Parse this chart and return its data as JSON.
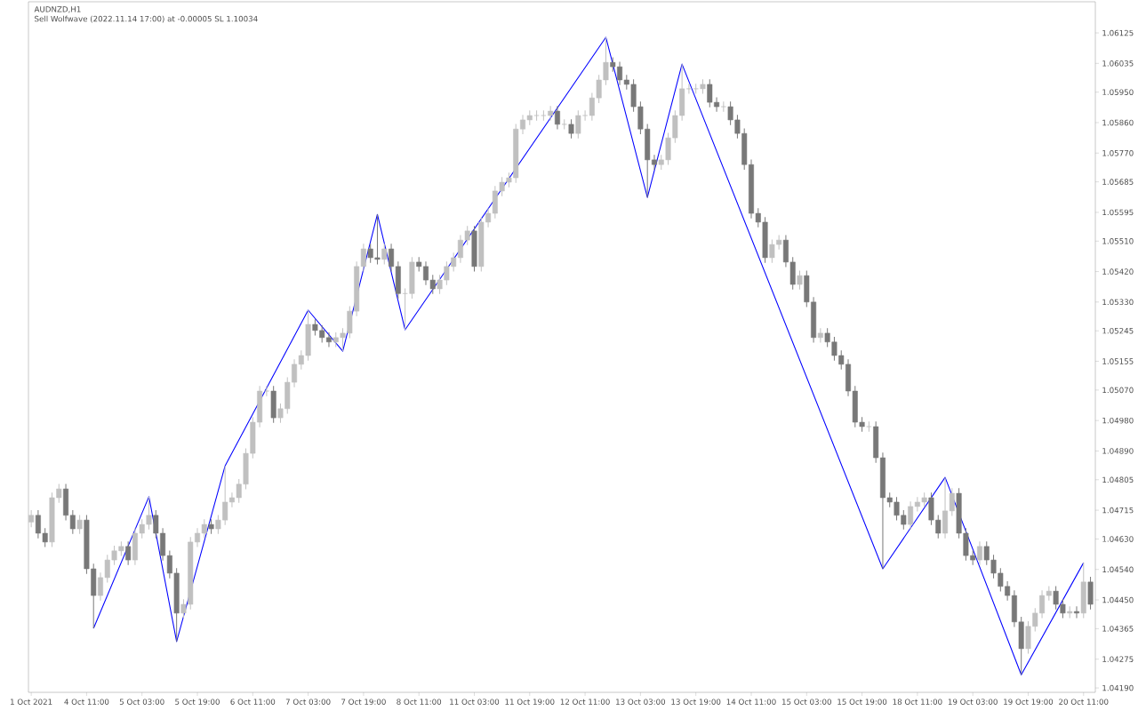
{
  "chart_data": {
    "type": "candlestick",
    "title": "AUDNZD,H1",
    "subtitle": "Sell Wolfwave (2022.11.14 17:00) at -0.00005 SL 1.10034",
    "ylim": [
      1.04177,
      1.06217
    ],
    "categories": [
      "1 Oct 2021",
      null,
      null,
      null,
      null,
      null,
      null,
      null,
      "4 Oct 11:00",
      null,
      null,
      null,
      null,
      null,
      null,
      null,
      "5 Oct 03:00",
      null,
      null,
      null,
      null,
      null,
      null,
      null,
      "5 Oct 19:00",
      null,
      null,
      null,
      null,
      null,
      null,
      null,
      "6 Oct 11:00",
      null,
      null,
      null,
      null,
      null,
      null,
      null,
      "7 Oct 03:00",
      null,
      null,
      null,
      null,
      null,
      null,
      null,
      "7 Oct 19:00",
      null,
      null,
      null,
      null,
      null,
      null,
      null,
      "8 Oct 11:00",
      null,
      null,
      null,
      null,
      null,
      null,
      null,
      "11 Oct 03:00",
      null,
      null,
      null,
      null,
      null,
      null,
      null,
      "11 Oct 19:00",
      null,
      null,
      null,
      null,
      null,
      null,
      null,
      "12 Oct 11:00",
      null,
      null,
      null,
      null,
      null,
      null,
      null,
      "13 Oct 03:00",
      null,
      null,
      null,
      null,
      null,
      null,
      null,
      "13 Oct 19:00",
      null,
      null,
      null,
      null,
      null,
      null,
      null,
      "14 Oct 11:00",
      null,
      null,
      null,
      null,
      null,
      null,
      null,
      "15 Oct 03:00",
      null,
      null,
      null,
      null,
      null,
      null,
      null,
      "15 Oct 19:00",
      null,
      null,
      null,
      null,
      null,
      null,
      null,
      "18 Oct 11:00",
      null,
      null,
      null,
      null,
      null,
      null,
      null,
      "19 Oct 03:00",
      null,
      null,
      null,
      null,
      null,
      null,
      null,
      "19 Oct 19:00",
      null,
      null,
      null,
      null,
      null,
      null,
      null,
      "20 Oct 11:00",
      null
    ],
    "yticks": [
      {
        "value": 1.0419,
        "label": "1.04190"
      },
      {
        "value": 1.04275,
        "label": "1.04275"
      },
      {
        "value": 1.04365,
        "label": "1.04365"
      },
      {
        "value": 1.0445,
        "label": "1.04450"
      },
      {
        "value": 1.0454,
        "label": "1.04540"
      },
      {
        "value": 1.0463,
        "label": "1.04630"
      },
      {
        "value": 1.04715,
        "label": "1.04715"
      },
      {
        "value": 1.04805,
        "label": "1.04805"
      },
      {
        "value": 1.0489,
        "label": "1.04890"
      },
      {
        "value": 1.0498,
        "label": "1.04980"
      },
      {
        "value": 1.0507,
        "label": "1.05070"
      },
      {
        "value": 1.05155,
        "label": "1.05155"
      },
      {
        "value": 1.05245,
        "label": "1.05245"
      },
      {
        "value": 1.0533,
        "label": "1.05330"
      },
      {
        "value": 1.0542,
        "label": "1.05420"
      },
      {
        "value": 1.0551,
        "label": "1.05510"
      },
      {
        "value": 1.05595,
        "label": "1.05595"
      },
      {
        "value": 1.05685,
        "label": "1.05685"
      },
      {
        "value": 1.0577,
        "label": "1.05770"
      },
      {
        "value": 1.0586,
        "label": "1.05860"
      },
      {
        "value": 1.0595,
        "label": "1.05950"
      },
      {
        "value": 1.06035,
        "label": "1.06035"
      },
      {
        "value": 1.06125,
        "label": "1.06125"
      }
    ],
    "ohlc": [
      [
        1.0468,
        1.04715,
        1.04665,
        1.047
      ],
      [
        1.047,
        1.04715,
        1.04632,
        1.04647
      ],
      [
        1.04647,
        1.04662,
        1.04606,
        1.04621
      ],
      [
        1.04621,
        1.04767,
        1.04606,
        1.04752
      ],
      [
        1.04752,
        1.04793,
        1.04737,
        1.04778
      ],
      [
        1.04778,
        1.04793,
        1.04685,
        1.047
      ],
      [
        1.047,
        1.04715,
        1.04645,
        1.0466
      ],
      [
        1.0466,
        1.04701,
        1.04645,
        1.04686
      ],
      [
        1.04686,
        1.04701,
        1.04527,
        1.04542
      ],
      [
        1.04542,
        1.04557,
        1.04366,
        1.04463
      ],
      [
        1.04463,
        1.04531,
        1.04448,
        1.04516
      ],
      [
        1.04516,
        1.04583,
        1.04501,
        1.04568
      ],
      [
        1.04568,
        1.0461,
        1.04553,
        1.04595
      ],
      [
        1.04595,
        1.04623,
        1.0458,
        1.04608
      ],
      [
        1.04608,
        1.04623,
        1.04553,
        1.04568
      ],
      [
        1.04568,
        1.04662,
        1.04553,
        1.04647
      ],
      [
        1.04647,
        1.04688,
        1.04632,
        1.04673
      ],
      [
        1.04673,
        1.04755,
        1.04658,
        1.047
      ],
      [
        1.047,
        1.04715,
        1.04632,
        1.04647
      ],
      [
        1.04647,
        1.04662,
        1.04566,
        1.04581
      ],
      [
        1.04581,
        1.04596,
        1.04514,
        1.04529
      ],
      [
        1.04529,
        1.04544,
        1.04327,
        1.04411
      ],
      [
        1.04411,
        1.04452,
        1.04396,
        1.04437
      ],
      [
        1.04437,
        1.04636,
        1.04422,
        1.04621
      ],
      [
        1.04621,
        1.04662,
        1.04606,
        1.04647
      ],
      [
        1.04647,
        1.04688,
        1.04632,
        1.04673
      ],
      [
        1.04673,
        1.04688,
        1.04645,
        1.0466
      ],
      [
        1.0466,
        1.04701,
        1.04645,
        1.04686
      ],
      [
        1.04686,
        1.04846,
        1.04671,
        1.04739
      ],
      [
        1.04739,
        1.04767,
        1.04724,
        1.04752
      ],
      [
        1.04752,
        1.04807,
        1.04737,
        1.04792
      ],
      [
        1.04792,
        1.04898,
        1.04777,
        1.04883
      ],
      [
        1.04883,
        1.0499,
        1.04868,
        1.04975
      ],
      [
        1.04975,
        1.05082,
        1.0496,
        1.05067
      ],
      [
        1.05067,
        1.05082,
        1.05052,
        1.05067
      ],
      [
        1.05067,
        1.05082,
        1.04973,
        1.04988
      ],
      [
        1.04988,
        1.0503,
        1.04973,
        1.05015
      ],
      [
        1.05015,
        1.05108,
        1.05,
        1.05093
      ],
      [
        1.05093,
        1.05161,
        1.05078,
        1.05146
      ],
      [
        1.05146,
        1.05187,
        1.05131,
        1.05172
      ],
      [
        1.05172,
        1.05306,
        1.05157,
        1.05264
      ],
      [
        1.05264,
        1.05279,
        1.05231,
        1.05246
      ],
      [
        1.05246,
        1.05261,
        1.0521,
        1.05225
      ],
      [
        1.05225,
        1.0524,
        1.05197,
        1.05212
      ],
      [
        1.05212,
        1.0524,
        1.05197,
        1.05225
      ],
      [
        1.05225,
        1.05253,
        1.05185,
        1.05238
      ],
      [
        1.05238,
        1.05318,
        1.05223,
        1.05303
      ],
      [
        1.05303,
        1.0545,
        1.05288,
        1.05435
      ],
      [
        1.05435,
        1.05502,
        1.0542,
        1.05487
      ],
      [
        1.05487,
        1.05502,
        1.05446,
        1.05461
      ],
      [
        1.05461,
        1.05589,
        1.05441,
        1.05456
      ],
      [
        1.05456,
        1.05502,
        1.05441,
        1.05487
      ],
      [
        1.05487,
        1.05502,
        1.0542,
        1.05435
      ],
      [
        1.05435,
        1.0545,
        1.0534,
        1.05355
      ],
      [
        1.05355,
        1.0537,
        1.05248,
        1.05355
      ],
      [
        1.05355,
        1.05463,
        1.0534,
        1.05448
      ],
      [
        1.05448,
        1.05463,
        1.0542,
        1.05435
      ],
      [
        1.05435,
        1.0545,
        1.0538,
        1.05395
      ],
      [
        1.05395,
        1.0541,
        1.05354,
        1.05369
      ],
      [
        1.05369,
        1.0541,
        1.05354,
        1.05395
      ],
      [
        1.05395,
        1.0545,
        1.0538,
        1.05435
      ],
      [
        1.05435,
        1.05476,
        1.0542,
        1.05461
      ],
      [
        1.05461,
        1.05528,
        1.05446,
        1.05513
      ],
      [
        1.05513,
        1.05555,
        1.05498,
        1.0554
      ],
      [
        1.0554,
        1.05555,
        1.0542,
        1.05435
      ],
      [
        1.05435,
        1.05581,
        1.0542,
        1.05566
      ],
      [
        1.05566,
        1.05607,
        1.05551,
        1.05592
      ],
      [
        1.05592,
        1.05673,
        1.05577,
        1.05658
      ],
      [
        1.05658,
        1.05699,
        1.05643,
        1.05684
      ],
      [
        1.05684,
        1.05712,
        1.05669,
        1.05697
      ],
      [
        1.05697,
        1.05856,
        1.05682,
        1.05841
      ],
      [
        1.05841,
        1.05883,
        1.05826,
        1.05868
      ],
      [
        1.05868,
        1.05896,
        1.05853,
        1.05881
      ],
      [
        1.05881,
        1.05896,
        1.05866,
        1.05881
      ],
      [
        1.05881,
        1.05896,
        1.05866,
        1.05881
      ],
      [
        1.05881,
        1.05909,
        1.05866,
        1.05894
      ],
      [
        1.05894,
        1.05909,
        1.0584,
        1.05855
      ],
      [
        1.05855,
        1.0587,
        1.0584,
        1.05855
      ],
      [
        1.05855,
        1.0587,
        1.05813,
        1.05828
      ],
      [
        1.05828,
        1.05896,
        1.05813,
        1.05881
      ],
      [
        1.05881,
        1.05896,
        1.05866,
        1.05881
      ],
      [
        1.05881,
        1.05948,
        1.05866,
        1.05933
      ],
      [
        1.05933,
        1.06001,
        1.05918,
        1.05986
      ],
      [
        1.05986,
        1.06112,
        1.05971,
        1.06038
      ],
      [
        1.06038,
        1.06053,
        1.0601,
        1.06025
      ],
      [
        1.06025,
        1.0604,
        1.05971,
        1.05986
      ],
      [
        1.05986,
        1.06001,
        1.05958,
        1.05973
      ],
      [
        1.05973,
        1.05988,
        1.05892,
        1.05907
      ],
      [
        1.05907,
        1.05922,
        1.05826,
        1.05841
      ],
      [
        1.05841,
        1.05856,
        1.05639,
        1.0575
      ],
      [
        1.0575,
        1.05765,
        1.05721,
        1.05736
      ],
      [
        1.05736,
        1.05765,
        1.05721,
        1.0575
      ],
      [
        1.0575,
        1.0583,
        1.05735,
        1.05815
      ],
      [
        1.05815,
        1.05896,
        1.058,
        1.05881
      ],
      [
        1.05881,
        1.06033,
        1.05866,
        1.0596
      ],
      [
        1.0596,
        1.05975,
        1.05945,
        1.0596
      ],
      [
        1.0596,
        1.05975,
        1.05945,
        1.0596
      ],
      [
        1.0596,
        1.05988,
        1.05945,
        1.05973
      ],
      [
        1.05973,
        1.05988,
        1.05905,
        1.0592
      ],
      [
        1.0592,
        1.05935,
        1.05892,
        1.05907
      ],
      [
        1.05907,
        1.05922,
        1.05892,
        1.05907
      ],
      [
        1.05907,
        1.05922,
        1.05853,
        1.05868
      ],
      [
        1.05868,
        1.05883,
        1.05813,
        1.05828
      ],
      [
        1.05828,
        1.05843,
        1.05721,
        1.05736
      ],
      [
        1.05736,
        1.05751,
        1.05577,
        1.05592
      ],
      [
        1.05592,
        1.05607,
        1.05551,
        1.05566
      ],
      [
        1.05566,
        1.05581,
        1.05446,
        1.05461
      ],
      [
        1.05461,
        1.05515,
        1.05446,
        1.055
      ],
      [
        1.055,
        1.05528,
        1.05485,
        1.05513
      ],
      [
        1.05513,
        1.05528,
        1.05433,
        1.05448
      ],
      [
        1.05448,
        1.05463,
        1.05367,
        1.05382
      ],
      [
        1.05382,
        1.05423,
        1.05367,
        1.05408
      ],
      [
        1.05408,
        1.05423,
        1.05315,
        1.0533
      ],
      [
        1.0533,
        1.05345,
        1.0521,
        1.05225
      ],
      [
        1.05225,
        1.05253,
        1.0521,
        1.05238
      ],
      [
        1.05238,
        1.05253,
        1.05197,
        1.05212
      ],
      [
        1.05212,
        1.05227,
        1.05157,
        1.05172
      ],
      [
        1.05172,
        1.05187,
        1.05131,
        1.05146
      ],
      [
        1.05146,
        1.05161,
        1.05052,
        1.05067
      ],
      [
        1.05067,
        1.05082,
        1.0496,
        1.04975
      ],
      [
        1.04975,
        1.0499,
        1.04947,
        1.04962
      ],
      [
        1.04962,
        1.04977,
        1.04947,
        1.04962
      ],
      [
        1.04962,
        1.04977,
        1.04855,
        1.0487
      ],
      [
        1.0487,
        1.04885,
        1.04542,
        1.04752
      ],
      [
        1.04752,
        1.04767,
        1.04724,
        1.04739
      ],
      [
        1.04739,
        1.04754,
        1.04685,
        1.047
      ],
      [
        1.047,
        1.04715,
        1.04658,
        1.04673
      ],
      [
        1.04673,
        1.04741,
        1.04658,
        1.04726
      ],
      [
        1.04726,
        1.04754,
        1.04711,
        1.04739
      ],
      [
        1.04739,
        1.04767,
        1.04724,
        1.04752
      ],
      [
        1.04752,
        1.04767,
        1.04671,
        1.04686
      ],
      [
        1.04686,
        1.04701,
        1.04632,
        1.04647
      ],
      [
        1.04647,
        1.04812,
        1.04632,
        1.04713
      ],
      [
        1.04713,
        1.0478,
        1.04698,
        1.04765
      ],
      [
        1.04765,
        1.0478,
        1.04632,
        1.04647
      ],
      [
        1.04647,
        1.04662,
        1.04566,
        1.04581
      ],
      [
        1.04581,
        1.04596,
        1.04553,
        1.04568
      ],
      [
        1.04568,
        1.04623,
        1.04553,
        1.04608
      ],
      [
        1.04608,
        1.04623,
        1.04553,
        1.04568
      ],
      [
        1.04568,
        1.04583,
        1.04514,
        1.04529
      ],
      [
        1.04529,
        1.04544,
        1.04475,
        1.0449
      ],
      [
        1.0449,
        1.04505,
        1.04448,
        1.04463
      ],
      [
        1.04463,
        1.04478,
        1.0437,
        1.04385
      ],
      [
        1.04385,
        1.044,
        1.04229,
        1.04306
      ],
      [
        1.04306,
        1.04387,
        1.04291,
        1.04372
      ],
      [
        1.04372,
        1.04426,
        1.04357,
        1.04411
      ],
      [
        1.04411,
        1.04478,
        1.04396,
        1.04463
      ],
      [
        1.04463,
        1.04491,
        1.04448,
        1.04476
      ],
      [
        1.04476,
        1.04491,
        1.04422,
        1.04437
      ],
      [
        1.04437,
        1.04452,
        1.04396,
        1.04411
      ],
      [
        1.04411,
        1.04431,
        1.04396,
        1.04416
      ],
      [
        1.04416,
        1.04431,
        1.04396,
        1.04411
      ],
      [
        1.04411,
        1.0456,
        1.04396,
        1.04503
      ],
      [
        1.04503,
        1.04518,
        1.04422,
        1.04437
      ]
    ],
    "colors": [
      "#c0c0c0",
      "#787878",
      "#787878",
      "#c0c0c0",
      "#c0c0c0",
      "#787878",
      "#787878",
      "#c0c0c0",
      "#787878",
      "#787878",
      "#c0c0c0",
      "#c0c0c0",
      "#c0c0c0",
      "#c0c0c0",
      "#787878",
      "#c0c0c0",
      "#c0c0c0",
      "#c0c0c0",
      "#787878",
      "#787878",
      "#787878",
      "#787878",
      "#c0c0c0",
      "#c0c0c0",
      "#c0c0c0",
      "#c0c0c0",
      "#787878",
      "#c0c0c0",
      "#c0c0c0",
      "#c0c0c0",
      "#c0c0c0",
      "#c0c0c0",
      "#c0c0c0",
      "#c0c0c0",
      "#c0c0c0",
      "#787878",
      "#c0c0c0",
      "#c0c0c0",
      "#c0c0c0",
      "#c0c0c0",
      "#c0c0c0",
      "#787878",
      "#787878",
      "#787878",
      "#c0c0c0",
      "#c0c0c0",
      "#c0c0c0",
      "#c0c0c0",
      "#c0c0c0",
      "#787878",
      "#787878",
      "#c0c0c0",
      "#787878",
      "#787878",
      "#c0c0c0",
      "#c0c0c0",
      "#787878",
      "#787878",
      "#787878",
      "#c0c0c0",
      "#c0c0c0",
      "#c0c0c0",
      "#c0c0c0",
      "#c0c0c0",
      "#787878",
      "#c0c0c0",
      "#c0c0c0",
      "#c0c0c0",
      "#c0c0c0",
      "#c0c0c0",
      "#c0c0c0",
      "#c0c0c0",
      "#c0c0c0",
      "#c0c0c0",
      "#c0c0c0",
      "#c0c0c0",
      "#787878",
      "#c0c0c0",
      "#787878",
      "#c0c0c0",
      "#c0c0c0",
      "#c0c0c0",
      "#c0c0c0",
      "#c0c0c0",
      "#787878",
      "#787878",
      "#787878",
      "#787878",
      "#787878",
      "#787878",
      "#787878",
      "#c0c0c0",
      "#c0c0c0",
      "#c0c0c0",
      "#c0c0c0",
      "#c0c0c0",
      "#c0c0c0",
      "#c0c0c0",
      "#787878",
      "#787878",
      "#c0c0c0",
      "#787878",
      "#787878",
      "#787878",
      "#787878",
      "#787878",
      "#787878",
      "#c0c0c0",
      "#c0c0c0",
      "#787878",
      "#787878",
      "#c0c0c0",
      "#787878",
      "#787878",
      "#c0c0c0",
      "#787878",
      "#787878",
      "#787878",
      "#787878",
      "#787878",
      "#787878",
      "#c0c0c0",
      "#787878",
      "#787878",
      "#787878",
      "#787878",
      "#787878",
      "#c0c0c0",
      "#c0c0c0",
      "#c0c0c0",
      "#787878",
      "#787878",
      "#c0c0c0",
      "#c0c0c0",
      "#787878",
      "#787878",
      "#787878",
      "#c0c0c0",
      "#787878",
      "#787878",
      "#787878",
      "#787878",
      "#787878",
      "#787878",
      "#c0c0c0",
      "#c0c0c0",
      "#c0c0c0",
      "#c0c0c0",
      "#787878",
      "#787878",
      "#c0c0c0",
      "#787878",
      "#c0c0c0",
      "#787878"
    ],
    "series": [
      {
        "type": "line",
        "color": "#0000ff",
        "values": [
          null,
          null,
          null,
          null,
          null,
          null,
          null,
          null,
          null,
          1.04366,
          null,
          null,
          null,
          null,
          null,
          null,
          null,
          1.04755,
          null,
          null,
          null,
          1.04327,
          null,
          null,
          null,
          null,
          null,
          null,
          1.04846,
          null,
          null,
          null,
          null,
          null,
          null,
          null,
          null,
          null,
          null,
          null,
          1.05306,
          null,
          null,
          null,
          null,
          1.05185,
          null,
          null,
          null,
          null,
          1.05589,
          null,
          null,
          null,
          1.05248,
          null,
          null,
          null,
          null,
          null,
          null,
          null,
          null,
          null,
          null,
          null,
          null,
          null,
          null,
          null,
          null,
          null,
          null,
          null,
          null,
          null,
          null,
          null,
          null,
          null,
          null,
          null,
          null,
          1.06112,
          null,
          null,
          null,
          null,
          null,
          1.05639,
          null,
          null,
          null,
          null,
          1.06033,
          null,
          null,
          null,
          null,
          null,
          null,
          null,
          null,
          null,
          null,
          null,
          null,
          null,
          null,
          null,
          null,
          null,
          null,
          null,
          null,
          null,
          null,
          null,
          null,
          null,
          null,
          null,
          null,
          1.04542,
          null,
          null,
          null,
          null,
          null,
          null,
          null,
          null,
          1.04812,
          null,
          null,
          null,
          null,
          null,
          null,
          null,
          null,
          null,
          null,
          1.04229,
          null,
          null,
          null,
          null,
          null,
          null,
          null,
          null,
          1.0456,
          null
        ]
      }
    ]
  }
}
